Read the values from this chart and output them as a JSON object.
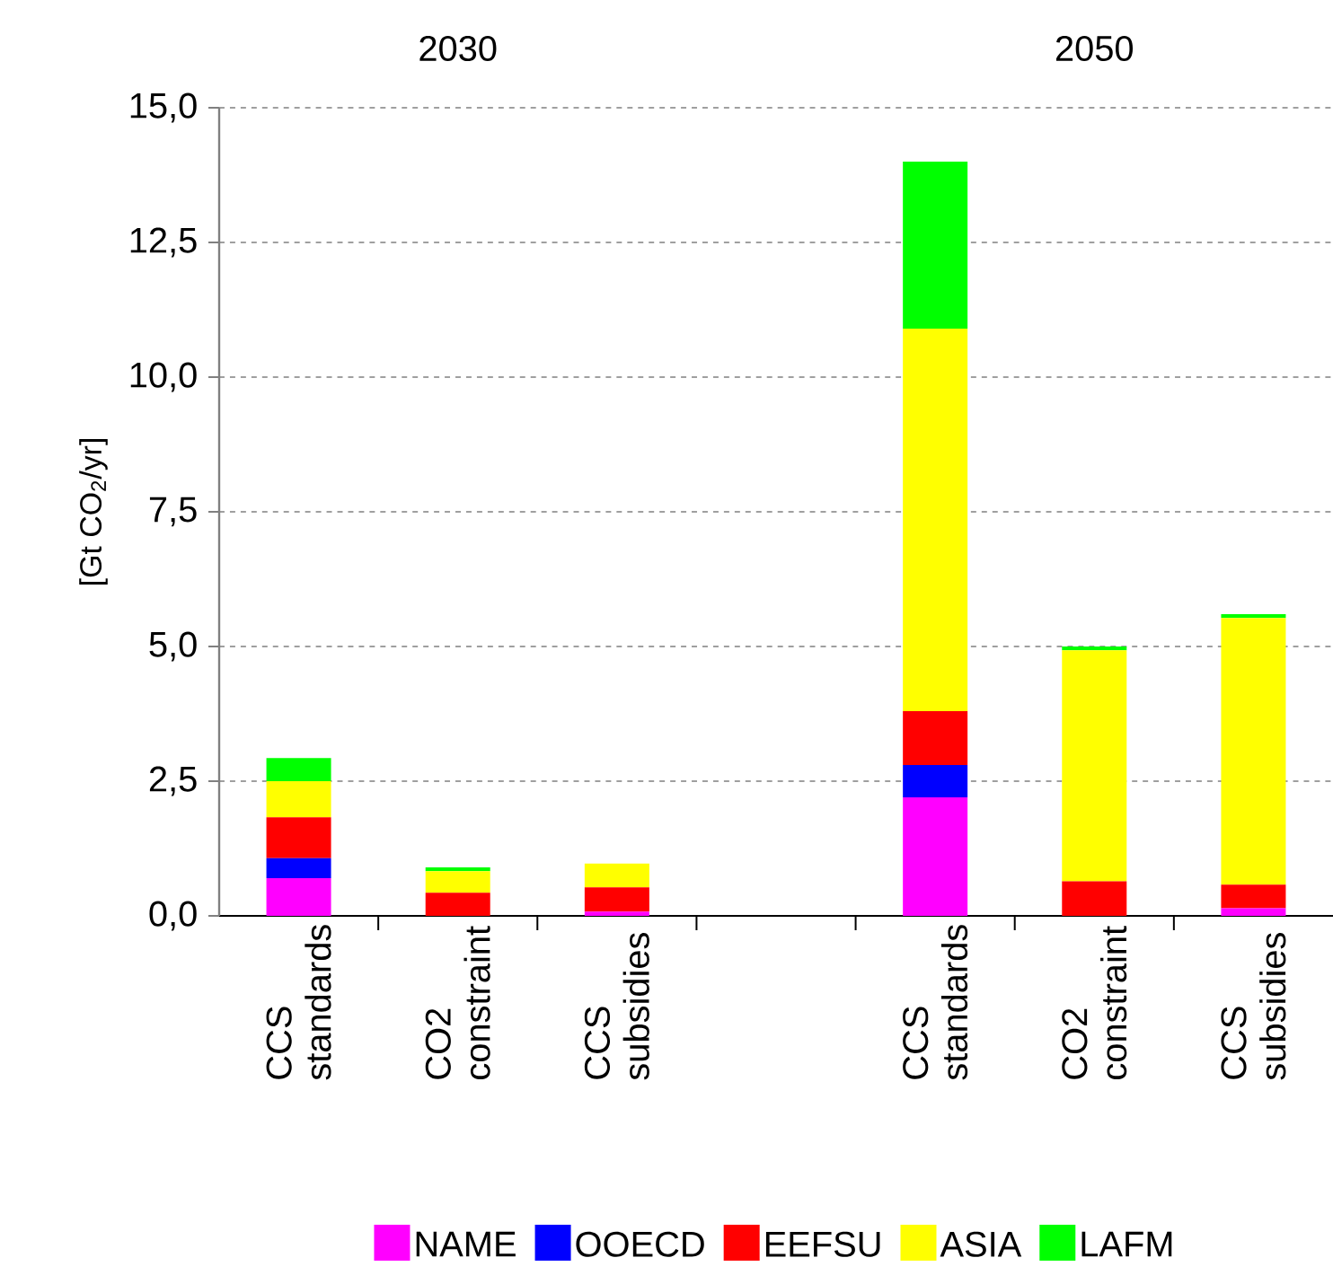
{
  "chart_data": {
    "type": "bar",
    "stacked": true,
    "ylabel": "[Gt CO$_{2}$/yr]",
    "annotations": [
      "2030",
      "2050"
    ],
    "categories": [
      "CCS standards",
      "CO2 constraint",
      "CCS subsidies",
      null,
      "CCS standards",
      "CO2 constraint",
      "CCS subsidies"
    ],
    "series": [
      {
        "name": "NAME",
        "color": "#ff00ff",
        "values": [
          0.7,
          0,
          0.08,
          null,
          2.2,
          0,
          0.14
        ]
      },
      {
        "name": "OOECD",
        "color": "#0000ff",
        "values": [
          0.37,
          0,
          0,
          null,
          0.6,
          0,
          0
        ]
      },
      {
        "name": "EEFSU",
        "color": "#ff0000",
        "values": [
          0.76,
          0.43,
          0.45,
          null,
          1.0,
          0.64,
          0.44
        ]
      },
      {
        "name": "ASIA",
        "color": "#ffff00",
        "values": [
          0.67,
          0.4,
          0.44,
          null,
          7.1,
          4.29,
          4.95
        ]
      },
      {
        "name": "LAFM",
        "color": "#00ff00",
        "values": [
          0.43,
          0.07,
          0,
          null,
          3.1,
          0.07,
          0.07
        ]
      }
    ],
    "ylim": [
      0,
      15
    ],
    "yticks": [
      {
        "value": 0,
        "label": "0,0"
      },
      {
        "value": 2.5,
        "label": "2,5"
      },
      {
        "value": 5,
        "label": "5,0"
      },
      {
        "value": 7.5,
        "label": "7,5"
      },
      {
        "value": 10,
        "label": "10,0"
      },
      {
        "value": 12.5,
        "label": "12,5"
      },
      {
        "value": 15,
        "label": "15,0"
      }
    ],
    "grid": "y",
    "legend": "bottom"
  }
}
